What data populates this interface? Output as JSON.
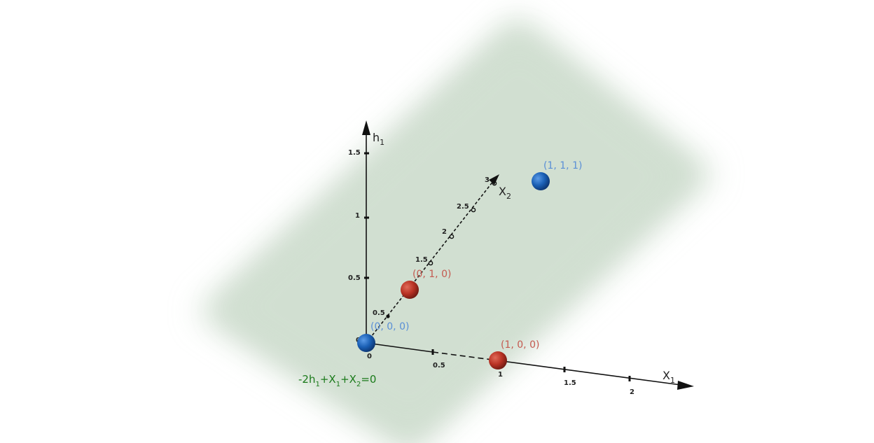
{
  "axes": {
    "x1": {
      "name": "X",
      "sub": "1",
      "ticks": [
        "0.5",
        "1",
        "1.5",
        "2"
      ]
    },
    "x2": {
      "name": "X",
      "sub": "2",
      "ticks": [
        "0.5",
        "1.5",
        "2",
        "2.5",
        "3"
      ]
    },
    "h1": {
      "name": "h",
      "sub": "1",
      "ticks": [
        "0.5",
        "1",
        "1.5"
      ]
    },
    "origin_ticks": [
      "0",
      "0"
    ]
  },
  "points": [
    {
      "label": "(0, 0, 0)",
      "color": "#1a5fb4",
      "label_color": "#5a8fd6"
    },
    {
      "label": "(0, 1, 0)",
      "color": "#b83224",
      "label_color": "#c45a50"
    },
    {
      "label": "(1, 0, 0)",
      "color": "#b83224",
      "label_color": "#c45a50"
    },
    {
      "label": "(1, 1, 1)",
      "color": "#1a5fb4",
      "label_color": "#5a8fd6"
    }
  ],
  "plane": {
    "equation_parts": [
      "-2h",
      "1",
      "+X",
      "1",
      "+X",
      "2",
      "=0"
    ],
    "color": "#cfddcf"
  }
}
